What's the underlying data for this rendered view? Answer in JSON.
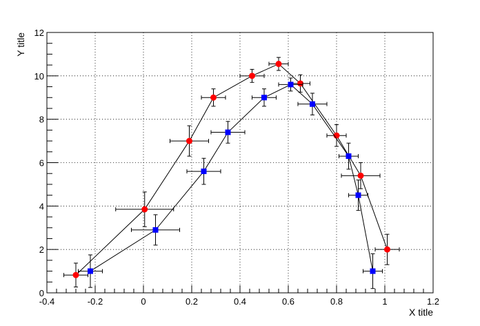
{
  "chart_data": {
    "type": "scatter",
    "xlabel": "X title",
    "ylabel": "Y title",
    "xlim": [
      -0.4,
      1.2
    ],
    "ylim": [
      0,
      12
    ],
    "x_ticks": [
      "-0.4",
      "-0.2",
      "0",
      "0.2",
      "0.4",
      "0.6",
      "0.8",
      "1",
      "1.2"
    ],
    "y_ticks": [
      "0",
      "2",
      "4",
      "6",
      "8",
      "10",
      "12"
    ],
    "grid": true,
    "series": [
      {
        "color": "#ff0000",
        "marker": "circle",
        "points": [
          {
            "x": -0.28,
            "y": 0.82,
            "ex": 0.05,
            "ey": 0.55
          },
          {
            "x": 0.005,
            "y": 3.85,
            "ex": 0.12,
            "ey": 0.8
          },
          {
            "x": 0.19,
            "y": 7.0,
            "ex": 0.08,
            "ey": 0.7
          },
          {
            "x": 0.29,
            "y": 9.0,
            "ex": 0.05,
            "ey": 0.4
          },
          {
            "x": 0.45,
            "y": 10.0,
            "ex": 0.05,
            "ey": 0.3
          },
          {
            "x": 0.56,
            "y": 10.55,
            "ex": 0.04,
            "ey": 0.3
          },
          {
            "x": 0.65,
            "y": 9.65,
            "ex": 0.04,
            "ey": 0.4
          },
          {
            "x": 0.8,
            "y": 7.25,
            "ex": 0.04,
            "ey": 0.5
          },
          {
            "x": 0.9,
            "y": 5.4,
            "ex": 0.08,
            "ey": 0.6
          },
          {
            "x": 1.01,
            "y": 2.0,
            "ex": 0.05,
            "ey": 0.7
          }
        ]
      },
      {
        "color": "#0000ff",
        "marker": "square",
        "points": [
          {
            "x": -0.22,
            "y": 1.0,
            "ex": 0.05,
            "ey": 0.75
          },
          {
            "x": 0.05,
            "y": 2.9,
            "ex": 0.1,
            "ey": 0.7
          },
          {
            "x": 0.25,
            "y": 5.6,
            "ex": 0.07,
            "ey": 0.6
          },
          {
            "x": 0.35,
            "y": 7.4,
            "ex": 0.07,
            "ey": 0.5
          },
          {
            "x": 0.5,
            "y": 9.0,
            "ex": 0.05,
            "ey": 0.4
          },
          {
            "x": 0.61,
            "y": 9.6,
            "ex": 0.05,
            "ey": 0.3
          },
          {
            "x": 0.7,
            "y": 8.7,
            "ex": 0.06,
            "ey": 0.5
          },
          {
            "x": 0.85,
            "y": 6.3,
            "ex": 0.04,
            "ey": 0.6
          },
          {
            "x": 0.89,
            "y": 4.5,
            "ex": 0.04,
            "ey": 0.7
          },
          {
            "x": 0.95,
            "y": 1.0,
            "ex": 0.04,
            "ey": 0.8
          }
        ]
      }
    ]
  }
}
